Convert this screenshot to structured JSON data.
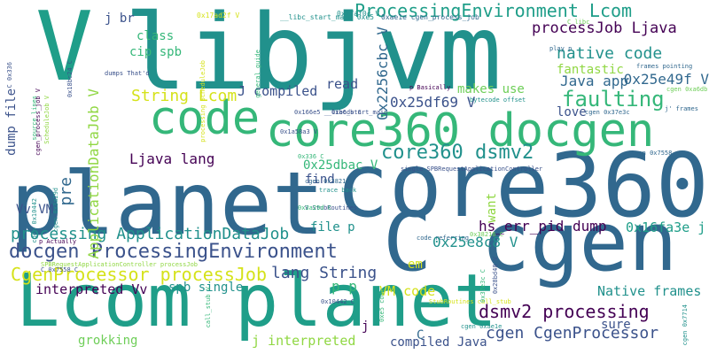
{
  "cloud": {
    "palette": {
      "purple": "#440154",
      "indigo": "#3b528b",
      "blue": "#31688e",
      "teal": "#21918c",
      "sea": "#1f9e89",
      "green": "#35b779",
      "lime": "#6ece58",
      "leaf": "#90d743",
      "yellow": "#d5e21a"
    },
    "words": [
      {
        "text": "libjvm",
        "color": "teal"
      },
      {
        "text": "V",
        "color": "sea"
      },
      {
        "text": "planet",
        "color": "blue"
      },
      {
        "text": "core360",
        "color": "blue"
      },
      {
        "text": "Lcom planet",
        "color": "sea"
      },
      {
        "text": "C cgen",
        "color": "blue"
      },
      {
        "text": "core360 docgen",
        "color": "green"
      },
      {
        "text": "code",
        "color": "green"
      },
      {
        "text": "ProcessingEnvironment Lcom",
        "color": "sea"
      },
      {
        "text": "processJob Ljava",
        "color": "purple"
      },
      {
        "text": "native code",
        "color": "teal"
      },
      {
        "text": "0x2256cbc V",
        "color": "blue"
      },
      {
        "text": "Java app",
        "color": "blue"
      },
      {
        "text": "fantastic",
        "color": "leaf"
      },
      {
        "text": "0x25e49f V",
        "color": "blue"
      },
      {
        "text": "faulting",
        "color": "green"
      },
      {
        "text": "core360 dsmv2",
        "color": "teal"
      },
      {
        "text": "0x25df69 V",
        "color": "indigo"
      },
      {
        "text": "love",
        "color": "indigo"
      },
      {
        "text": "docgen ProcessingEnvironment",
        "color": "indigo"
      },
      {
        "text": "processing ApplicationDataJob",
        "color": "teal"
      },
      {
        "text": "CgenProcessor processJob",
        "color": "yellow"
      },
      {
        "text": "lang String",
        "color": "indigo"
      },
      {
        "text": "interpreted Vv",
        "color": "purple"
      },
      {
        "text": "spb single",
        "color": "teal"
      },
      {
        "text": "p p",
        "color": "green"
      },
      {
        "text": "VM code",
        "color": "yellow"
      },
      {
        "text": "dsmv2 processing",
        "color": "purple"
      },
      {
        "text": "cgen CgenProcessor",
        "color": "indigo"
      },
      {
        "text": "hs_err_pid dump",
        "color": "purple"
      },
      {
        "text": "0x16fa3e j",
        "color": "sea"
      },
      {
        "text": "Native frames",
        "color": "teal"
      },
      {
        "text": "0x25e8c8 V",
        "color": "teal"
      },
      {
        "text": "0x25dbac V",
        "color": "green"
      },
      {
        "text": "Ljava lang",
        "color": "purple"
      },
      {
        "text": "String Lcom",
        "color": "yellow"
      },
      {
        "text": "J compiled",
        "color": "indigo"
      },
      {
        "text": "read",
        "color": "indigo"
      },
      {
        "text": "makes use",
        "color": "lime"
      },
      {
        "text": "class",
        "color": "green"
      },
      {
        "text": "cip spb",
        "color": "green"
      },
      {
        "text": "j br",
        "color": "indigo"
      },
      {
        "text": "ApplicationDataJob V",
        "color": "leaf"
      },
      {
        "text": "pre",
        "color": "blue"
      },
      {
        "text": "dump file",
        "color": "indigo"
      },
      {
        "text": "Vv VM",
        "color": "indigo"
      },
      {
        "text": "grokking",
        "color": "lime"
      },
      {
        "text": "j interpreted",
        "color": "leaf"
      },
      {
        "text": "compiled Java",
        "color": "indigo"
      },
      {
        "text": "sure",
        "color": "indigo"
      },
      {
        "text": "find",
        "color": "indigo"
      },
      {
        "text": "file p",
        "color": "teal"
      },
      {
        "text": "em",
        "color": "yellow"
      },
      {
        "text": "want",
        "color": "leaf"
      },
      {
        "text": "j",
        "color": "purple"
      },
      {
        "text": "C",
        "color": "blue"
      },
      {
        "text": "0x17ad2f V",
        "color": "yellow"
      },
      {
        "text": "__libc_start_main 0xe5",
        "color": "teal"
      },
      {
        "text": "0x17af0c V",
        "color": "teal"
      },
      {
        "text": "0xae1e cgen_process_job",
        "color": "blue"
      },
      {
        "text": "play p",
        "color": "blue"
      },
      {
        "text": "C libc",
        "color": "lime"
      },
      {
        "text": "frames pointing",
        "color": "blue"
      },
      {
        "text": "dumps That'd",
        "color": "indigo"
      },
      {
        "text": "p Basically",
        "color": "purple"
      },
      {
        "text": "0x166e5 __libc_start_main",
        "color": "indigo"
      },
      {
        "text": "bytecode offset",
        "color": "teal"
      },
      {
        "text": "cgen 0x37e3c",
        "color": "blue"
      },
      {
        "text": "j' frames",
        "color": "blue"
      },
      {
        "text": "0x1a58a3 V",
        "color": "indigo"
      },
      {
        "text": "0xa6db C",
        "color": "indigo"
      },
      {
        "text": "single SPBRequestApplicationController",
        "color": "indigo"
      },
      {
        "text": "cgen 0x7558",
        "color": "blue"
      },
      {
        "text": "cgen 0x38216",
        "color": "blue"
      },
      {
        "text": "trace back",
        "color": "teal"
      },
      {
        "text": "V StubRoutines",
        "color": "indigo"
      },
      {
        "text": "cgen 0x3a29d",
        "color": "teal"
      },
      {
        "text": "cgen 0x10442",
        "color": "teal"
      },
      {
        "text": "cgen_process_job V",
        "color": "purple"
      },
      {
        "text": "ScheduleJob V",
        "color": "leaf"
      },
      {
        "text": "source lines",
        "color": "green"
      },
      {
        "text": "C 0x336",
        "color": "indigo"
      },
      {
        "text": "0x18bc24 C",
        "color": "indigo"
      },
      {
        "text": "0x3a29d C",
        "color": "green"
      },
      {
        "text": "0x336 C",
        "color": "green"
      },
      {
        "text": "0x38216 C",
        "color": "lime"
      },
      {
        "text": "code referring",
        "color": "blue"
      },
      {
        "text": "SPBRequestApplicationController processJob",
        "color": "leaf"
      },
      {
        "text": "p Actually",
        "color": "purple"
      },
      {
        "text": "C 0x7558 C",
        "color": "indigo"
      },
      {
        "text": "StubRoutines call_stub",
        "color": "yellow"
      },
      {
        "text": "0x10442 C",
        "color": "indigo"
      },
      {
        "text": "cgen 0xae1e",
        "color": "teal"
      },
      {
        "text": "0x37e3c C",
        "color": "green"
      },
      {
        "text": "0x28bd48 V",
        "color": "indigo"
      },
      {
        "text": "cgen 0x7714",
        "color": "teal"
      },
      {
        "text": "call_stub V",
        "color": "green"
      },
      {
        "text": "0xe5 code",
        "color": "green"
      },
      {
        "text": "processing ScheduleJob",
        "color": "yellow"
      },
      {
        "text": "general guide",
        "color": "green"
      },
      {
        "text": "cgen 0xa6db",
        "color": "lime"
      }
    ]
  }
}
